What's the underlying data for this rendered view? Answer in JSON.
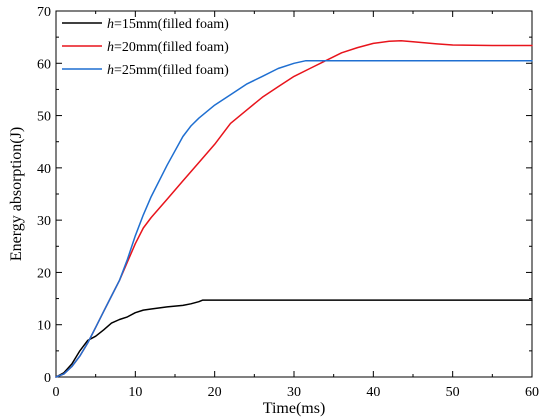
{
  "chart_data": {
    "type": "line",
    "title": "",
    "xlabel": "Time(ms)",
    "ylabel": "Energy absorption(J)",
    "xlim": [
      0,
      60
    ],
    "ylim": [
      0,
      70
    ],
    "xticks": [
      0,
      10,
      20,
      30,
      40,
      50,
      60
    ],
    "yticks": [
      0,
      10,
      20,
      30,
      40,
      50,
      60,
      70
    ],
    "grid": false,
    "legend_position": "top-left",
    "series": [
      {
        "name": "h=15mm(filled foam)",
        "legend_var": "h",
        "legend_rest": "=15mm(filled foam)",
        "color": "#000000",
        "x": [
          0,
          1,
          2,
          3,
          4,
          5,
          6,
          7,
          8,
          9,
          10,
          11,
          12,
          14,
          16,
          17,
          18,
          18.5,
          20,
          25,
          30,
          40,
          50,
          60
        ],
        "y": [
          0,
          0.8,
          2.5,
          5.0,
          7.0,
          7.8,
          9.0,
          10.3,
          11.0,
          11.5,
          12.3,
          12.8,
          13.0,
          13.4,
          13.7,
          14.0,
          14.4,
          14.7,
          14.7,
          14.7,
          14.7,
          14.7,
          14.7,
          14.7
        ]
      },
      {
        "name": "h=20mm(filled foam)",
        "legend_var": "h",
        "legend_rest": "=20mm(filled foam)",
        "color": "#e8141c",
        "x": [
          0,
          1,
          2,
          3,
          4,
          5,
          6,
          7,
          8,
          9,
          10,
          11,
          12,
          14,
          16,
          18,
          20,
          22,
          24,
          26,
          28,
          30,
          32,
          34,
          36,
          38,
          40,
          42,
          43.5,
          45,
          48,
          50,
          55,
          60
        ],
        "y": [
          0,
          0.6,
          2.0,
          4.0,
          6.5,
          9.5,
          12.5,
          15.5,
          18.5,
          22.0,
          25.5,
          28.5,
          30.5,
          34.0,
          37.5,
          41.0,
          44.5,
          48.5,
          51.0,
          53.5,
          55.5,
          57.5,
          59.0,
          60.5,
          62.0,
          63.0,
          63.8,
          64.2,
          64.3,
          64.1,
          63.7,
          63.5,
          63.4,
          63.4
        ]
      },
      {
        "name": "h=25mm(filled foam)",
        "legend_var": "h",
        "legend_rest": "=25mm(filled foam)",
        "color": "#1f6fd1",
        "x": [
          0,
          1,
          2,
          3,
          4,
          5,
          6,
          7,
          8,
          9,
          10,
          11,
          12,
          14,
          16,
          17,
          18,
          20,
          22,
          24,
          26,
          28,
          30,
          31.5,
          32,
          35,
          40,
          50,
          60
        ],
        "y": [
          0,
          0.6,
          2.0,
          4.0,
          6.5,
          9.5,
          12.5,
          15.5,
          18.5,
          22.5,
          27.0,
          31.0,
          34.5,
          40.5,
          46.0,
          48.0,
          49.5,
          52.0,
          54.0,
          56.0,
          57.5,
          59.0,
          60.0,
          60.5,
          60.5,
          60.5,
          60.5,
          60.5,
          60.5
        ]
      }
    ]
  }
}
